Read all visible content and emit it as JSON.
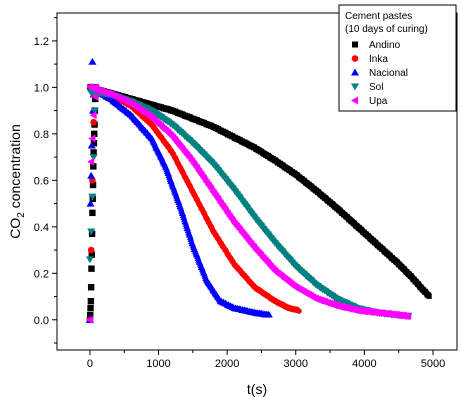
{
  "chart_data": {
    "type": "scatter",
    "title": "",
    "xlabel": "t(s)",
    "ylabel_main": "CO",
    "ylabel_sub": "2",
    "ylabel_rest": " concentration",
    "xlim": [
      -480,
      5350
    ],
    "ylim": [
      -0.13,
      1.32
    ],
    "xticks": [
      0,
      1000,
      2000,
      3000,
      4000,
      5000
    ],
    "yticks": [
      0.0,
      0.2,
      0.4,
      0.6,
      0.8,
      1.0,
      1.2
    ],
    "xtick_labels": [
      "0",
      "1000",
      "2000",
      "3000",
      "4000",
      "5000"
    ],
    "ytick_labels": [
      "0.0",
      "0.2",
      "0.4",
      "0.6",
      "0.8",
      "1.0",
      "1.2"
    ],
    "grid": false,
    "legend": {
      "placement": "top-right",
      "title_line1": "Cement pastes",
      "title_line2": "(10 days of curing)"
    },
    "series": [
      {
        "name": "Andino",
        "color": "#000000",
        "marker": "square",
        "rise": [
          [
            0,
            0.0
          ],
          [
            5,
            0.02
          ],
          [
            10,
            0.05
          ],
          [
            15,
            0.08
          ],
          [
            20,
            0.14
          ],
          [
            25,
            0.22
          ],
          [
            30,
            0.28
          ],
          [
            35,
            0.37
          ],
          [
            40,
            0.46
          ],
          [
            45,
            0.52
          ],
          [
            50,
            0.58
          ],
          [
            55,
            0.66
          ],
          [
            60,
            0.72
          ],
          [
            65,
            0.76
          ],
          [
            70,
            0.8
          ],
          [
            75,
            0.84
          ],
          [
            80,
            0.9
          ],
          [
            85,
            0.95
          ],
          [
            90,
            0.98
          ],
          [
            95,
            1.0
          ]
        ],
        "decay": [
          [
            0,
            1.0
          ],
          [
            300,
            0.975
          ],
          [
            600,
            0.95
          ],
          [
            900,
            0.925
          ],
          [
            1200,
            0.9
          ],
          [
            1500,
            0.865
          ],
          [
            1800,
            0.83
          ],
          [
            2100,
            0.785
          ],
          [
            2400,
            0.74
          ],
          [
            2700,
            0.685
          ],
          [
            3000,
            0.625
          ],
          [
            3300,
            0.555
          ],
          [
            3600,
            0.48
          ],
          [
            3900,
            0.4
          ],
          [
            4200,
            0.32
          ],
          [
            4500,
            0.24
          ],
          [
            4700,
            0.18
          ],
          [
            4850,
            0.13
          ],
          [
            4950,
            0.1
          ]
        ]
      },
      {
        "name": "Inka",
        "color": "#ff0000",
        "marker": "circle",
        "rise": [
          [
            0,
            0.0
          ],
          [
            20,
            0.3
          ],
          [
            40,
            0.6
          ],
          [
            60,
            0.85
          ],
          [
            80,
            0.97
          ],
          [
            100,
            1.0
          ]
        ],
        "decay": [
          [
            0,
            1.0
          ],
          [
            300,
            0.97
          ],
          [
            600,
            0.92
          ],
          [
            900,
            0.84
          ],
          [
            1200,
            0.72
          ],
          [
            1500,
            0.55
          ],
          [
            1800,
            0.38
          ],
          [
            2100,
            0.24
          ],
          [
            2400,
            0.14
          ],
          [
            2700,
            0.08
          ],
          [
            2900,
            0.05
          ],
          [
            3050,
            0.04
          ]
        ]
      },
      {
        "name": "Nacional",
        "color": "#0000ff",
        "marker": "triangle-up",
        "rise": [
          [
            0,
            0.0
          ],
          [
            10,
            0.5
          ],
          [
            20,
            0.62
          ],
          [
            30,
            0.75
          ],
          [
            40,
            1.11
          ],
          [
            50,
            0.9
          ],
          [
            60,
            0.97
          ],
          [
            80,
            1.0
          ]
        ],
        "decay": [
          [
            0,
            1.0
          ],
          [
            300,
            0.95
          ],
          [
            600,
            0.88
          ],
          [
            900,
            0.78
          ],
          [
            1100,
            0.66
          ],
          [
            1300,
            0.5
          ],
          [
            1500,
            0.32
          ],
          [
            1700,
            0.17
          ],
          [
            1900,
            0.08
          ],
          [
            2100,
            0.05
          ],
          [
            2400,
            0.03
          ],
          [
            2620,
            0.02
          ]
        ]
      },
      {
        "name": "Sol",
        "color": "#008080",
        "marker": "triangle-down",
        "rise": [
          [
            0,
            0.26
          ],
          [
            20,
            0.38
          ],
          [
            40,
            0.53
          ],
          [
            60,
            0.7
          ],
          [
            80,
            0.9
          ],
          [
            100,
            0.98
          ]
        ],
        "decay": [
          [
            0,
            0.98
          ],
          [
            300,
            0.97
          ],
          [
            600,
            0.94
          ],
          [
            900,
            0.9
          ],
          [
            1200,
            0.84
          ],
          [
            1500,
            0.76
          ],
          [
            1800,
            0.67
          ],
          [
            2100,
            0.56
          ],
          [
            2400,
            0.44
          ],
          [
            2700,
            0.33
          ],
          [
            3000,
            0.23
          ],
          [
            3300,
            0.15
          ],
          [
            3600,
            0.09
          ],
          [
            3900,
            0.05
          ],
          [
            4200,
            0.03
          ],
          [
            4500,
            0.02
          ],
          [
            4650,
            0.015
          ]
        ]
      },
      {
        "name": "Upa",
        "color": "#ff00ff",
        "marker": "triangle-left",
        "rise": [
          [
            0,
            0.0
          ],
          [
            20,
            0.68
          ],
          [
            40,
            0.78
          ],
          [
            60,
            0.88
          ],
          [
            80,
            0.96
          ],
          [
            100,
            1.0
          ]
        ],
        "decay": [
          [
            0,
            1.0
          ],
          [
            300,
            0.97
          ],
          [
            600,
            0.93
          ],
          [
            900,
            0.87
          ],
          [
            1200,
            0.79
          ],
          [
            1500,
            0.68
          ],
          [
            1800,
            0.55
          ],
          [
            2100,
            0.42
          ],
          [
            2400,
            0.31
          ],
          [
            2700,
            0.21
          ],
          [
            3000,
            0.14
          ],
          [
            3300,
            0.09
          ],
          [
            3600,
            0.06
          ],
          [
            3900,
            0.04
          ],
          [
            4200,
            0.03
          ],
          [
            4500,
            0.02
          ],
          [
            4650,
            0.015
          ]
        ]
      }
    ]
  }
}
